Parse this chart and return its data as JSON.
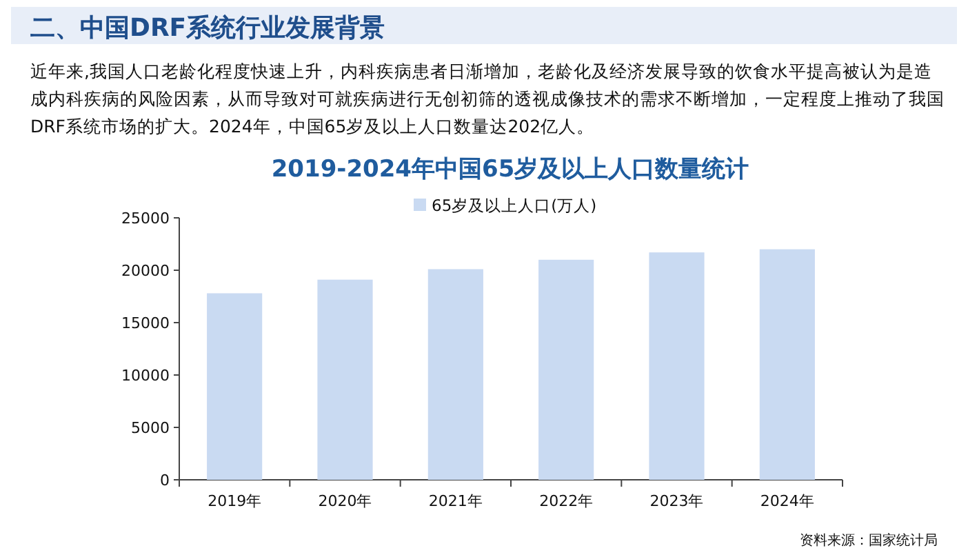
{
  "chart_data": {
    "type": "bar",
    "title": "2019-2024年中国65岁及以上人口数量统计",
    "categories": [
      "2019年",
      "2020年",
      "2021年",
      "2022年",
      "2023年",
      "2024年"
    ],
    "series": [
      {
        "name": "65岁及以上人口(万人)",
        "color": "#c9daf2",
        "values": [
          17800,
          19100,
          20100,
          21000,
          21700,
          22000
        ]
      }
    ],
    "ylim": [
      0,
      25000
    ],
    "yticks": [
      0,
      5000,
      10000,
      15000,
      20000,
      25000
    ],
    "legend": "top",
    "annotations": [
      "二、中国DRF系统行业发展背景",
      "近年来,我国人口老龄化程度快速上升，内科疾病患者日渐增加，老龄化及经济发展导致的饮食水平提高被认为是造成内科疾病的风险因素，从而导致对可就疾病进行无创初筛的透视成像技术的需求不断增加，一定程度上推动了我国DRF系统市场的扩大。2024年，中国65岁及以上人口数量达202亿人。",
      "资料来源：国家统计局"
    ]
  }
}
